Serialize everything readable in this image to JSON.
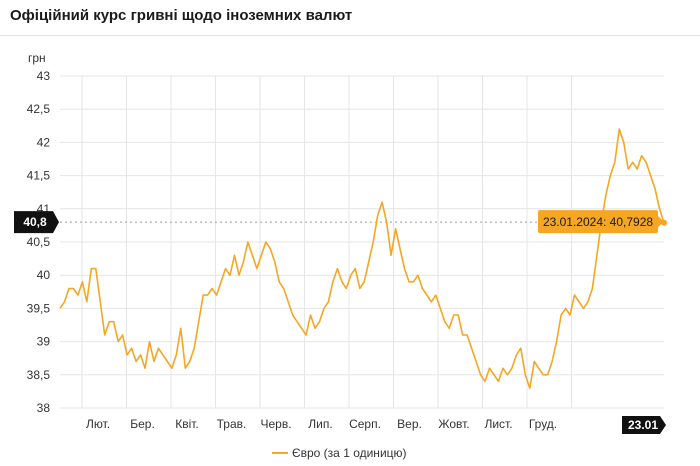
{
  "header": {
    "title": "Офіційний курс гривні щодо іноземних валют"
  },
  "chart_data": {
    "type": "line",
    "ylabel": "грн",
    "ylim": [
      38,
      43
    ],
    "yticks": [
      "38",
      "38,5",
      "39",
      "39,5",
      "40",
      "40,5",
      "41",
      "41,5",
      "42",
      "42,5",
      "43"
    ],
    "xticks": [
      "Лют.",
      "Бер.",
      "Квіт.",
      "Трав.",
      "Черв.",
      "Лип.",
      "Серп.",
      "Вер.",
      "Жовт.",
      "Лист.",
      "Груд."
    ],
    "x_end_label": "23.01",
    "y_marker_label": "40,8",
    "y_marker_value": 40.8,
    "tooltip": {
      "text": "23.01.2024: 40,7928",
      "value": 40.7928
    },
    "grid": true,
    "legend_position": "bottom",
    "color": "#f5a623",
    "series": [
      {
        "name": "Євро (за 1 одиницю)",
        "values": [
          39.5,
          39.6,
          39.8,
          39.8,
          39.7,
          39.9,
          39.6,
          40.1,
          40.1,
          39.6,
          39.1,
          39.3,
          39.3,
          39.0,
          39.1,
          38.8,
          38.9,
          38.7,
          38.8,
          38.6,
          39.0,
          38.7,
          38.9,
          38.8,
          38.7,
          38.6,
          38.8,
          39.2,
          38.6,
          38.7,
          38.9,
          39.3,
          39.7,
          39.7,
          39.8,
          39.7,
          39.9,
          40.1,
          40.0,
          40.3,
          40.0,
          40.2,
          40.5,
          40.3,
          40.1,
          40.3,
          40.5,
          40.4,
          40.2,
          39.9,
          39.8,
          39.6,
          39.4,
          39.3,
          39.2,
          39.1,
          39.4,
          39.2,
          39.3,
          39.5,
          39.6,
          39.9,
          40.1,
          39.9,
          39.8,
          40.0,
          40.1,
          39.8,
          39.9,
          40.2,
          40.5,
          40.9,
          41.1,
          40.8,
          40.3,
          40.7,
          40.4,
          40.1,
          39.9,
          39.9,
          40.0,
          39.8,
          39.7,
          39.6,
          39.7,
          39.5,
          39.3,
          39.2,
          39.4,
          39.4,
          39.1,
          39.1,
          38.9,
          38.7,
          38.5,
          38.4,
          38.6,
          38.5,
          38.4,
          38.6,
          38.5,
          38.6,
          38.8,
          38.9,
          38.5,
          38.3,
          38.7,
          38.6,
          38.5,
          38.5,
          38.7,
          39.0,
          39.4,
          39.5,
          39.4,
          39.7,
          39.6,
          39.5,
          39.6,
          39.8,
          40.3,
          40.8,
          41.2,
          41.5,
          41.7,
          42.2,
          42.0,
          41.6,
          41.7,
          41.6,
          41.8,
          41.7,
          41.5,
          41.3,
          41.0,
          40.79
        ]
      }
    ]
  }
}
